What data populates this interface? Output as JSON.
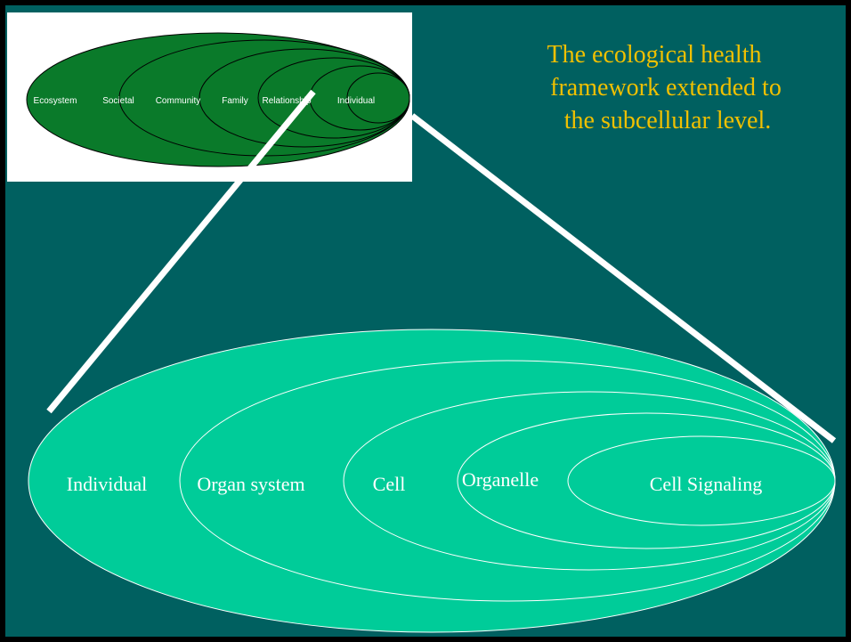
{
  "title": "The ecological health framework extended to the subcellular level.",
  "top_levels": [
    "Ecosystem",
    "Societal",
    "Community",
    "Family",
    "Relationship",
    "Individual"
  ],
  "bottom_levels": [
    "Individual",
    "Organ system",
    "Cell",
    "Organelle",
    "Cell Signaling"
  ]
}
